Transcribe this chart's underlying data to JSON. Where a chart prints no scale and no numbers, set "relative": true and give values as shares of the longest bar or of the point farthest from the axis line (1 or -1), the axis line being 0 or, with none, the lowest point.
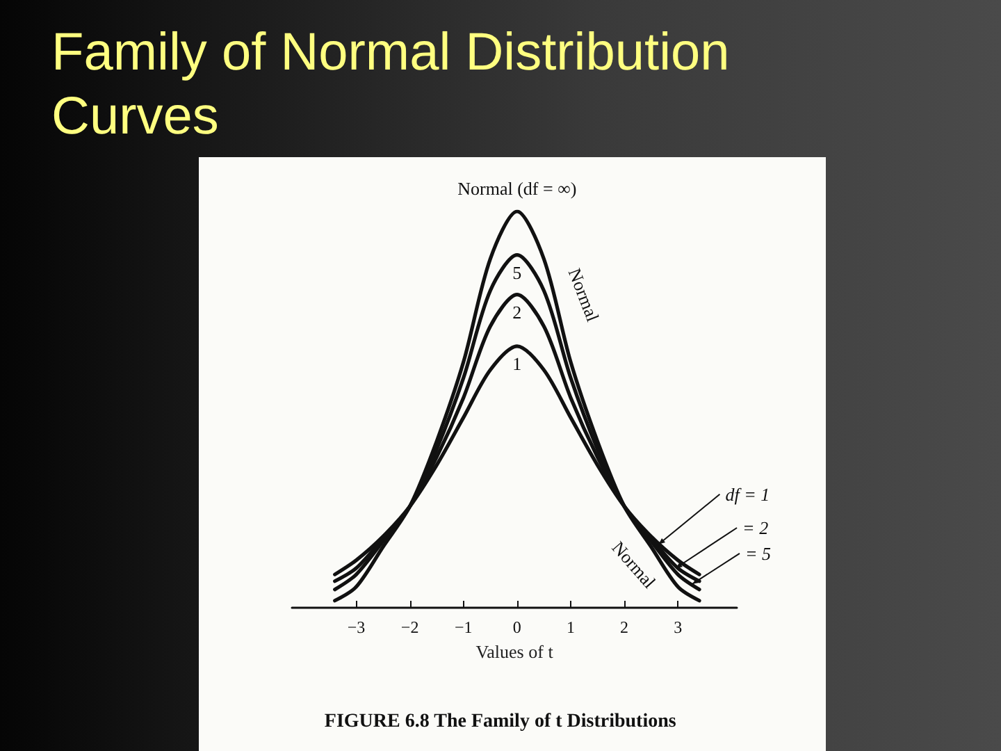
{
  "chart_data": {
    "type": "line",
    "title": "Family of Normal Distribution Curves",
    "xlabel": "Values of t",
    "relative": true,
    "x": [
      -3.4,
      -3,
      -2.5,
      -2,
      -1.5,
      -1,
      -0.5,
      0,
      0.5,
      1,
      1.5,
      2,
      2.5,
      3,
      3.4
    ],
    "series": [
      {
        "name": "Normal (df = ∞)",
        "color": "#111111",
        "values": [
          0.018,
          0.053,
          0.154,
          0.256,
          0.42,
          0.62,
          0.88,
          1,
          0.88,
          0.62,
          0.42,
          0.256,
          0.154,
          0.053,
          0.018
        ]
      },
      {
        "name": "5",
        "color": "#111111",
        "values": [
          0.046,
          0.084,
          0.168,
          0.256,
          0.4,
          0.58,
          0.8,
          0.89,
          0.8,
          0.58,
          0.4,
          0.256,
          0.168,
          0.084,
          0.046
        ]
      },
      {
        "name": "2",
        "color": "#111111",
        "values": [
          0.067,
          0.1,
          0.175,
          0.256,
          0.38,
          0.53,
          0.71,
          0.79,
          0.71,
          0.53,
          0.38,
          0.256,
          0.175,
          0.1,
          0.067
        ]
      },
      {
        "name": "1",
        "color": "#111111",
        "values": [
          0.084,
          0.12,
          0.18,
          0.256,
          0.36,
          0.48,
          0.6,
          0.66,
          0.6,
          0.48,
          0.36,
          0.256,
          0.18,
          0.12,
          0.084
        ]
      }
    ],
    "xlim": [
      -4.2,
      4.1
    ],
    "xticks": [
      -3,
      -2,
      -1,
      0,
      1,
      2,
      3
    ],
    "grid": false,
    "legend": false,
    "marker": "none",
    "line_style": "solid",
    "annotations": [
      "Normal",
      "Normal",
      {
        "text": "df = 1",
        "x": 2.64,
        "y": 0.16
      },
      {
        "text": "= 2",
        "x": 2.96,
        "y": 0.1
      },
      {
        "text": "= 5",
        "x": 3.27,
        "y": 0.06
      },
      "FIGURE 6.8 The Family of t Distributions"
    ]
  }
}
